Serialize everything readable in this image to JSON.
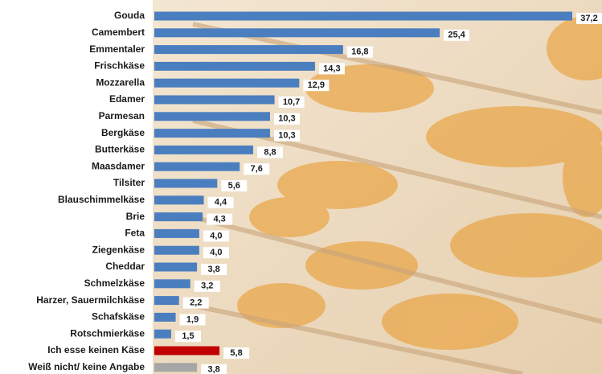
{
  "chart_data": {
    "type": "bar",
    "orientation": "horizontal",
    "categories": [
      "Gouda",
      "Camembert",
      "Emmentaler",
      "Frischkäse",
      "Mozzarella",
      "Edamer",
      "Parmesan",
      "Bergkäse",
      "Butterkäse",
      "Maasdamer",
      "Tilsiter",
      "Blauschimmelkäse",
      "Brie",
      "Feta",
      "Ziegenkäse",
      "Cheddar",
      "Schmelzkäse",
      "Harzer, Sauermilchkäse",
      "Schafskäse",
      "Rotschmierkäse",
      "Ich esse keinen Käse",
      "Weiß nicht/ keine Angabe"
    ],
    "values": [
      37.2,
      25.4,
      16.8,
      14.3,
      12.9,
      10.7,
      10.3,
      10.3,
      8.8,
      7.6,
      5.6,
      4.4,
      4.3,
      4.0,
      4.0,
      3.8,
      3.2,
      2.2,
      1.9,
      1.5,
      5.8,
      3.8
    ],
    "value_labels": [
      "37,2",
      "25,4",
      "16,8",
      "14,3",
      "12,9",
      "10,7",
      "10,3",
      "10,3",
      "8,8",
      "7,6",
      "5,6",
      "4,4",
      "4,3",
      "4,0",
      "4,0",
      "3,8",
      "3,2",
      "2,2",
      "1,9",
      "1,5",
      "5,8",
      "3,8"
    ],
    "colors": [
      "#4a7ebf",
      "#4a7ebf",
      "#4a7ebf",
      "#4a7ebf",
      "#4a7ebf",
      "#4a7ebf",
      "#4a7ebf",
      "#4a7ebf",
      "#4a7ebf",
      "#4a7ebf",
      "#4a7ebf",
      "#4a7ebf",
      "#4a7ebf",
      "#4a7ebf",
      "#4a7ebf",
      "#4a7ebf",
      "#4a7ebf",
      "#4a7ebf",
      "#4a7ebf",
      "#4a7ebf",
      "#c00000",
      "#a6a6a6"
    ]
  }
}
